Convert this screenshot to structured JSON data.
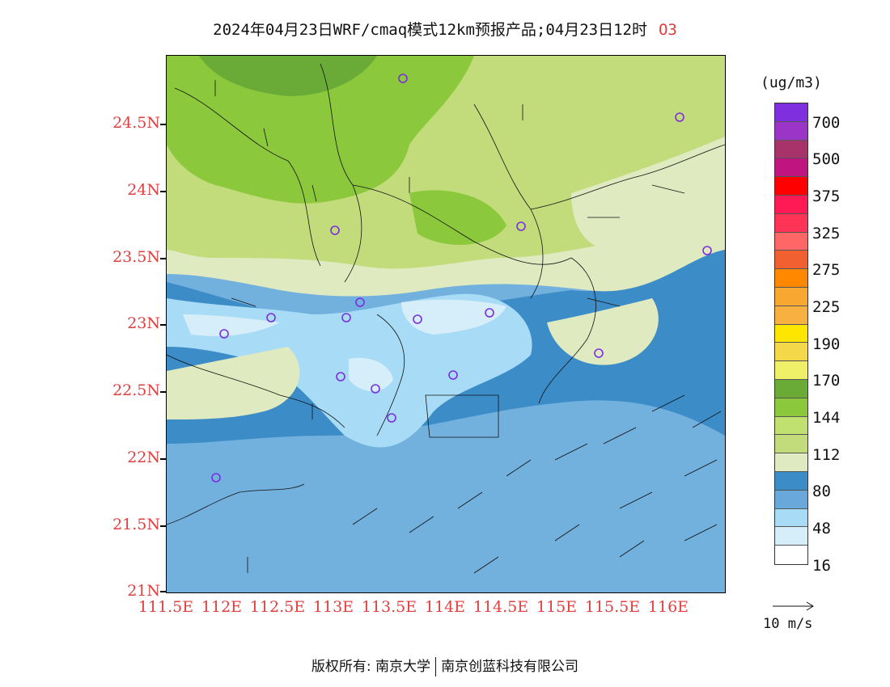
{
  "header": {
    "title": "2024年04月23日WRF/cmaq模式12km预报产品;04月23日12时",
    "variable": "O3"
  },
  "axes": {
    "lat_ticks": [
      "24.5N",
      "24N",
      "23.5N",
      "23N",
      "22.5N",
      "22N",
      "21.5N",
      "21N"
    ],
    "lon_ticks": [
      "111.5E",
      "112E",
      "112.5E",
      "113E",
      "113.5E",
      "114E",
      "114.5E",
      "115E",
      "115.5E",
      "116E"
    ]
  },
  "legend": {
    "units": "(ug/m3)",
    "swatch_colors": [
      "#7f2ee0",
      "#9a35c8",
      "#a8326a",
      "#c01480",
      "#ff0000",
      "#ff1a55",
      "#ff3355",
      "#ff6666",
      "#f06030",
      "#ff8800",
      "#f8a830",
      "#f8b040",
      "#ffe600",
      "#f5d84a",
      "#f0f068",
      "#6aaa36",
      "#8cc83c",
      "#c0e070",
      "#c2dc7c",
      "#e0eac0",
      "#3c8cc8",
      "#68a8da",
      "#a8dcf6",
      "#d6eefa",
      "#ffffff"
    ],
    "labels": [
      "700",
      "500",
      "375",
      "325",
      "275",
      "225",
      "190",
      "170",
      "144",
      "112",
      "80",
      "48",
      "16"
    ]
  },
  "wind_reference": {
    "label": "10 m/s"
  },
  "footer": {
    "copyright": "版权所有: 南京大学",
    "company": "南京创蓝科技有限公司"
  },
  "map_colors": {
    "ocean": "#72b0dd",
    "deep": "#3c8cc8",
    "light_blue": "#a8dcf6",
    "very_light_blue": "#d6eefa",
    "pale_green": "#e0eac0",
    "light_green": "#c2dc7c",
    "mid_green": "#8cc83c",
    "dark_green": "#6aaa36",
    "station_marker": "#7a2ee0"
  }
}
